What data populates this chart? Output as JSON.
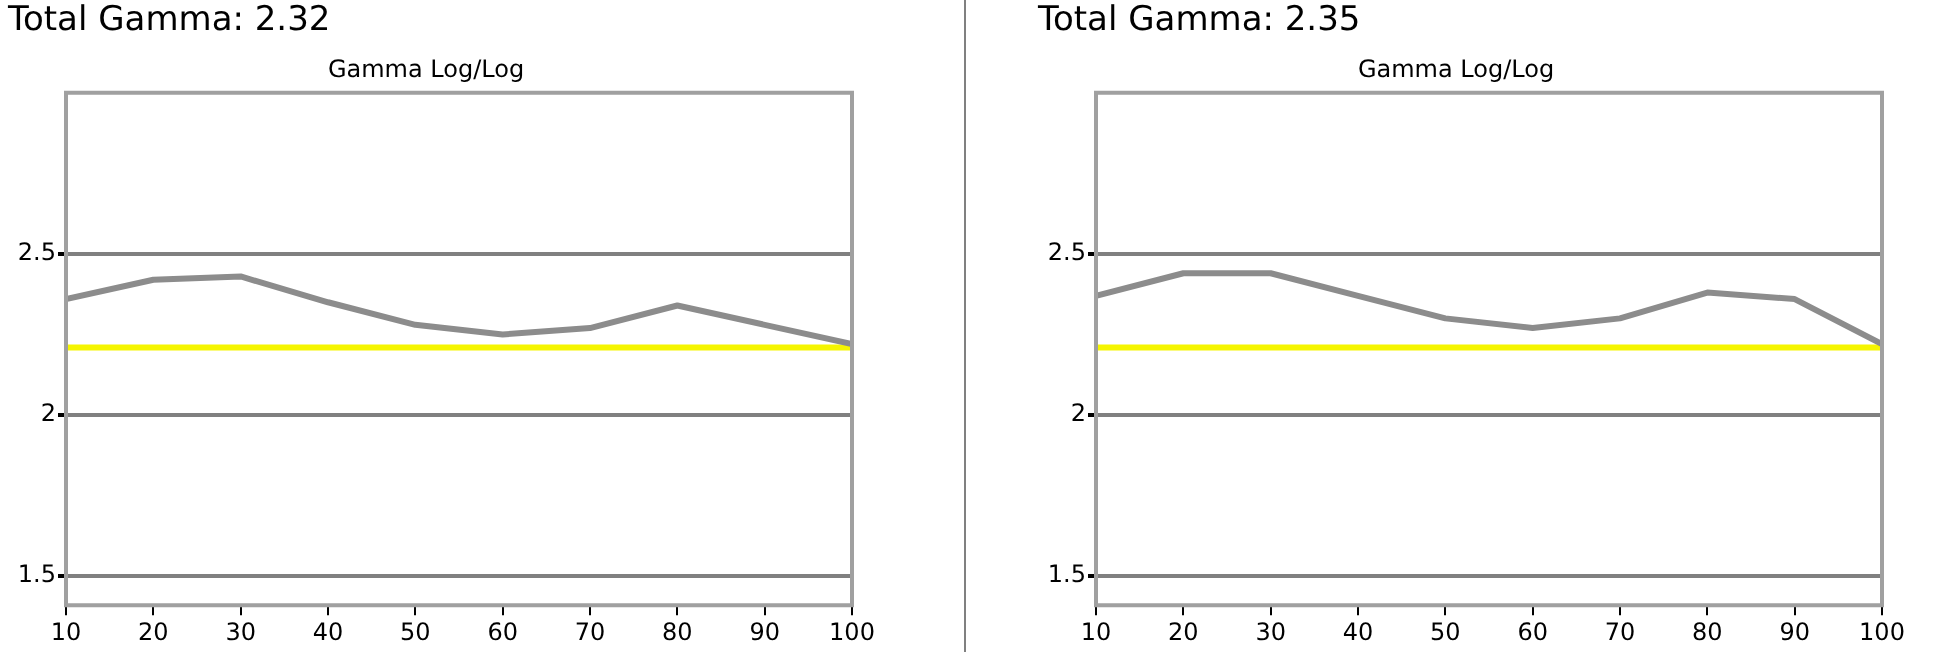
{
  "chart_data": [
    {
      "type": "line",
      "title": "Total Gamma: 2.32",
      "subtitle": "Gamma Log/Log",
      "x": [
        10,
        20,
        30,
        40,
        50,
        60,
        70,
        80,
        90,
        100
      ],
      "series": [
        {
          "color": "#8c8c8c",
          "values": [
            2.36,
            2.42,
            2.43,
            2.35,
            2.28,
            2.25,
            2.27,
            2.34,
            2.28,
            2.22
          ]
        }
      ],
      "ref_lines": [
        {
          "axis": "y",
          "value": 2.21,
          "color": "#f5f500"
        }
      ],
      "xlim": [
        10,
        100
      ],
      "xticks": [
        10,
        20,
        30,
        40,
        50,
        60,
        70,
        80,
        90,
        100
      ],
      "ylim": [
        1.41,
        3
      ],
      "yticks": [
        1.5,
        2,
        2.5
      ],
      "grid": "y",
      "legend": false,
      "marker": "none",
      "line_style": "solid"
    },
    {
      "type": "line",
      "title": "Total Gamma: 2.35",
      "subtitle": "Gamma Log/Log",
      "x": [
        10,
        20,
        30,
        40,
        50,
        60,
        70,
        80,
        90,
        100
      ],
      "series": [
        {
          "color": "#8c8c8c",
          "values": [
            2.37,
            2.44,
            2.44,
            2.37,
            2.3,
            2.27,
            2.3,
            2.38,
            2.36,
            2.22
          ]
        }
      ],
      "ref_lines": [
        {
          "axis": "y",
          "value": 2.21,
          "color": "#f5f500"
        }
      ],
      "xlim": [
        10,
        100
      ],
      "xticks": [
        10,
        20,
        30,
        40,
        50,
        60,
        70,
        80,
        90,
        100
      ],
      "ylim": [
        1.41,
        3
      ],
      "yticks": [
        1.5,
        2,
        2.5
      ],
      "grid": "y",
      "legend": false,
      "marker": "none",
      "line_style": "solid"
    }
  ]
}
